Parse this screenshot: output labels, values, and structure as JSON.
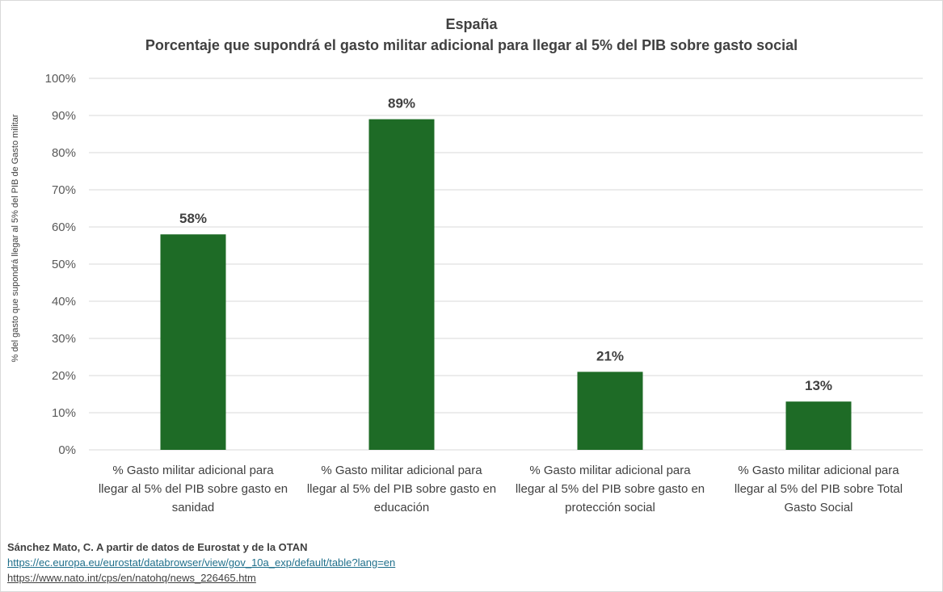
{
  "chart_data": {
    "type": "bar",
    "title": "España",
    "subtitle": "Porcentaje que supondrá el gasto militar adicional para llegar al 5% del PIB sobre gasto social",
    "ylabel": "% del gasto que supondrá llegar al 5% del PIB de Gasto militar",
    "xlabel": "",
    "categories": [
      "% Gasto militar adicional para llegar al 5% del PIB sobre gasto en sanidad",
      "% Gasto militar adicional para llegar al 5% del PIB sobre gasto en educación",
      "% Gasto militar adicional para llegar al 5% del PIB sobre gasto en protección social",
      "% Gasto militar adicional para llegar al 5% del PIB sobre Total Gasto Social"
    ],
    "category_lines": [
      [
        "% Gasto militar adicional para",
        "llegar al 5% del PIB sobre gasto en",
        "sanidad"
      ],
      [
        "% Gasto militar adicional para",
        "llegar al 5% del PIB sobre gasto en",
        "educación"
      ],
      [
        "% Gasto militar adicional para",
        "llegar al 5% del PIB sobre gasto en",
        "protección social"
      ],
      [
        "% Gasto militar adicional para",
        "llegar al 5% del PIB sobre Total",
        "Gasto Social"
      ]
    ],
    "values": [
      58,
      89,
      21,
      13
    ],
    "data_labels": [
      "58%",
      "89%",
      "21%",
      "13%"
    ],
    "ylim": [
      0,
      100
    ],
    "yticks": [
      0,
      10,
      20,
      30,
      40,
      50,
      60,
      70,
      80,
      90,
      100
    ],
    "ytick_labels": [
      "0%",
      "10%",
      "20%",
      "30%",
      "40%",
      "50%",
      "60%",
      "70%",
      "80%",
      "90%",
      "100%"
    ],
    "grid": true,
    "legend": "none",
    "bar_color": "#1e6b26",
    "grid_color": "#d9d9d9"
  },
  "source": {
    "text": "Sánchez Mato, C.  A partir de datos de Eurostat y de la OTAN",
    "link_1": "https://ec.europa.eu/eurostat/databrowser/view/gov_10a_exp/default/table?lang=en",
    "link_2": "https://www.nato.int/cps/en/natohq/news_226465.htm"
  }
}
